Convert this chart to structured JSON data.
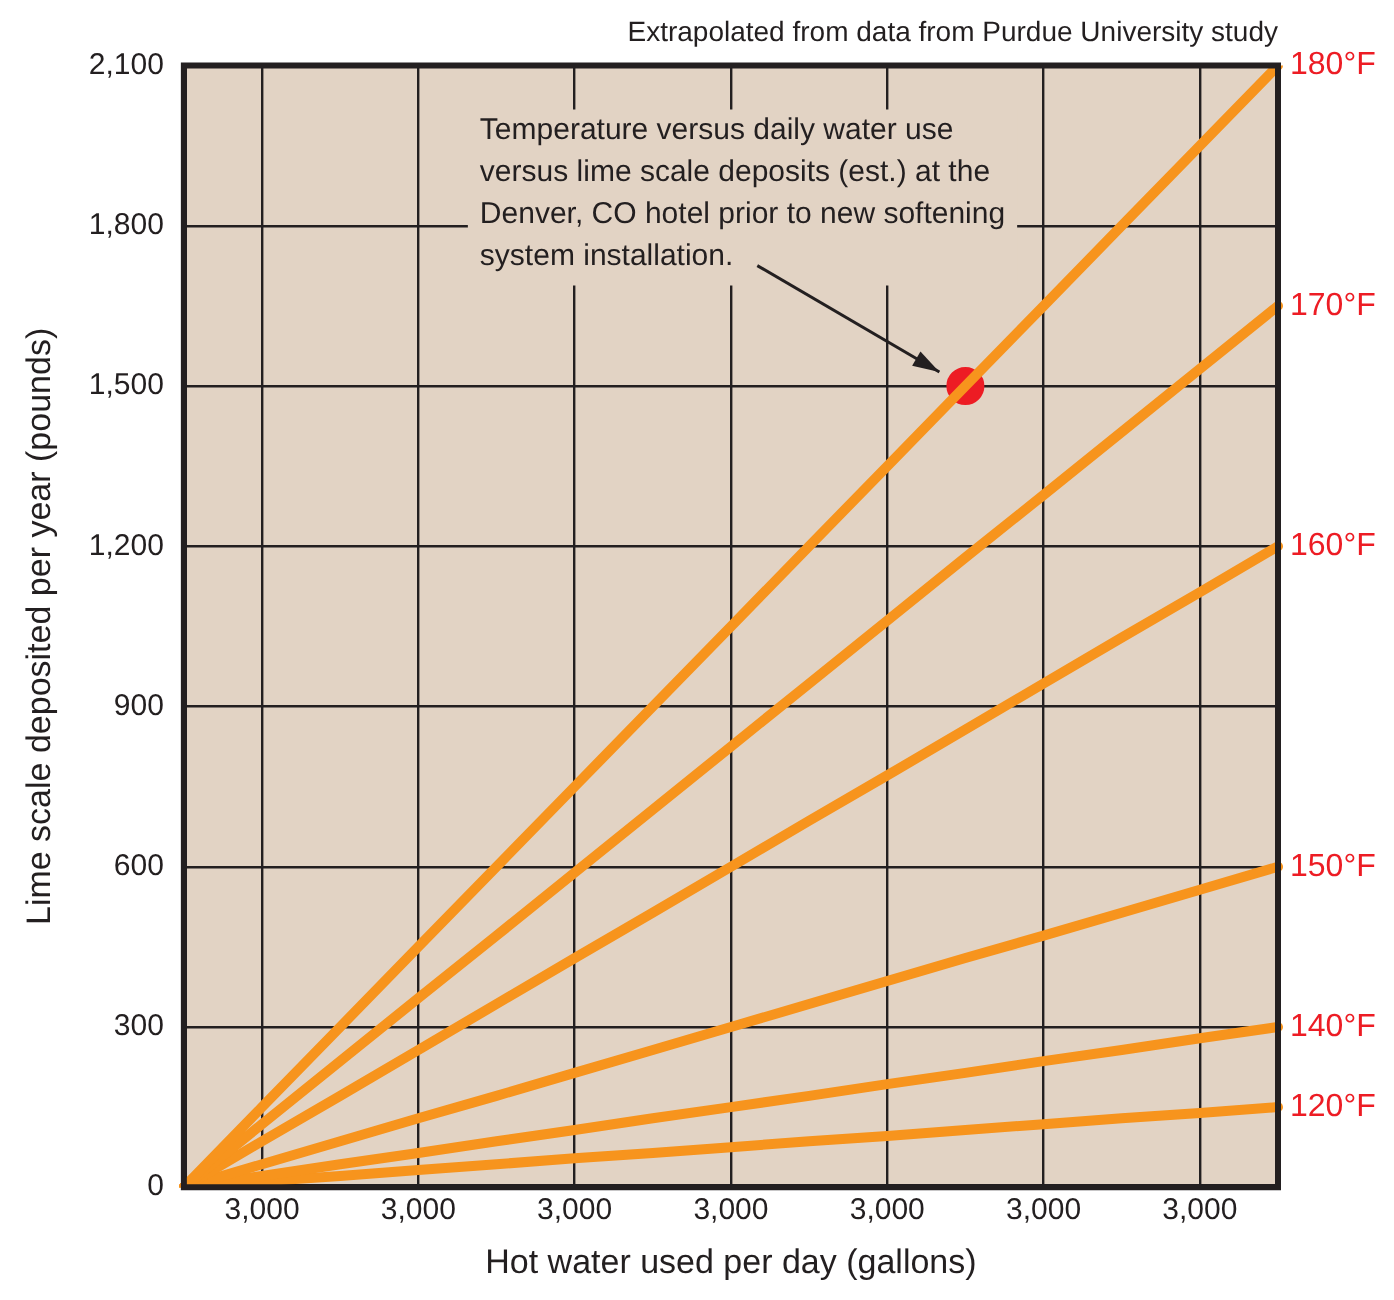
{
  "chart_data": {
    "type": "line",
    "title": "Extrapolated from data from Purdue University study",
    "xlabel": "Hot water used per day (gallons)",
    "ylabel": "Lime scale deposited per year (pounds)",
    "categories": [
      null,
      "3,000",
      null,
      "3,000",
      null,
      "3,000",
      null,
      "3,000",
      null,
      "3,000",
      null,
      "3,000",
      null,
      "3,000",
      null
    ],
    "ylim": [
      0,
      2100
    ],
    "yticks": [
      0,
      {
        "value": 300,
        "label": "300"
      },
      {
        "value": 600,
        "label": "600"
      },
      {
        "value": 900,
        "label": "900"
      },
      {
        "value": 1200,
        "label": "1,200"
      },
      {
        "value": 1500,
        "label": "1,500"
      },
      {
        "value": 1800,
        "label": "1,800"
      },
      {
        "value": 2100,
        "label": "2,100"
      }
    ],
    "grid": true,
    "legend": false,
    "marker": "none",
    "line_style": "solid",
    "series": [
      {
        "name": "180°F",
        "color": "#f7941d",
        "values": [
          0,
          150,
          300,
          450,
          600,
          750,
          900,
          1050,
          1200,
          1350,
          1500,
          1650,
          1800,
          1950,
          2100
        ]
      },
      {
        "name": "170°F",
        "color": "#f7941d",
        "values": [
          0,
          118,
          236,
          354,
          471,
          589,
          707,
          825,
          943,
          1061,
          1179,
          1296,
          1414,
          1532,
          1650
        ]
      },
      {
        "name": "160°F",
        "color": "#f7941d",
        "values": [
          0,
          86,
          171,
          257,
          343,
          429,
          514,
          600,
          686,
          771,
          857,
          943,
          1029,
          1114,
          1200
        ]
      },
      {
        "name": "150°F",
        "color": "#f7941d",
        "values": [
          0,
          43,
          86,
          129,
          171,
          214,
          257,
          300,
          343,
          386,
          429,
          471,
          514,
          557,
          600
        ]
      },
      {
        "name": "140°F",
        "color": "#f7941d",
        "values": [
          0,
          21,
          43,
          64,
          86,
          107,
          129,
          150,
          171,
          193,
          214,
          236,
          257,
          279,
          300
        ]
      },
      {
        "name": "120°F",
        "color": "#f7941d",
        "values": [
          0,
          11,
          21,
          32,
          43,
          54,
          64,
          75,
          86,
          96,
          107,
          118,
          129,
          139,
          150
        ]
      },
      {
        "type": "scatter",
        "color": "#ed1c24",
        "values": [
          null,
          null,
          null,
          null,
          null,
          null,
          null,
          null,
          null,
          null,
          1500,
          null,
          null,
          null,
          null
        ],
        "marker": "circle"
      }
    ],
    "annotations": [
      "Temperature versus daily water use versus lime scale deposits (est.) at the Denver, CO hotel prior to new softening system installation."
    ]
  }
}
